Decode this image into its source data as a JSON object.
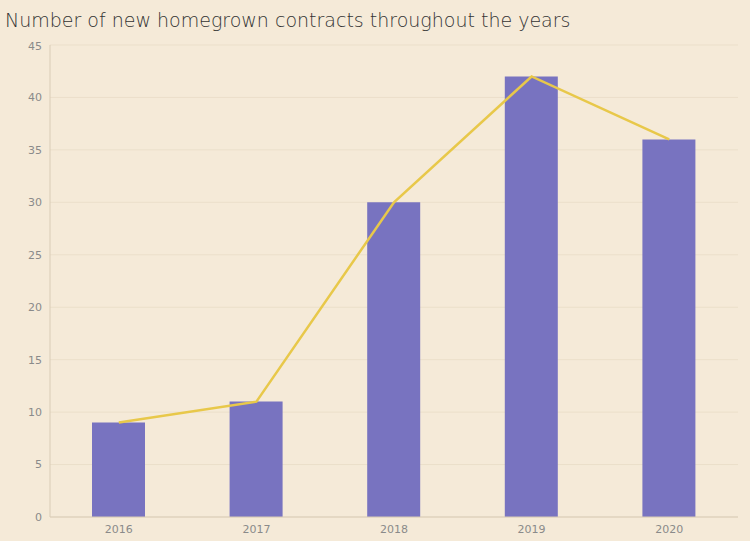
{
  "chart_data": {
    "type": "bar",
    "title": "Number of new homegrown contracts throughout the years",
    "categories": [
      "2016",
      "2017",
      "2018",
      "2019",
      "2020"
    ],
    "series": [
      {
        "type": "bar",
        "color": "#7873c0",
        "values": [
          9,
          11,
          30,
          42,
          36
        ]
      },
      {
        "type": "line",
        "color": "#e8c84a",
        "values": [
          9,
          11,
          30,
          42,
          36
        ]
      }
    ],
    "ylim": [
      0,
      45
    ],
    "yticks": [
      0,
      5,
      10,
      15,
      20,
      25,
      30,
      35,
      40,
      45
    ],
    "grid": true
  }
}
